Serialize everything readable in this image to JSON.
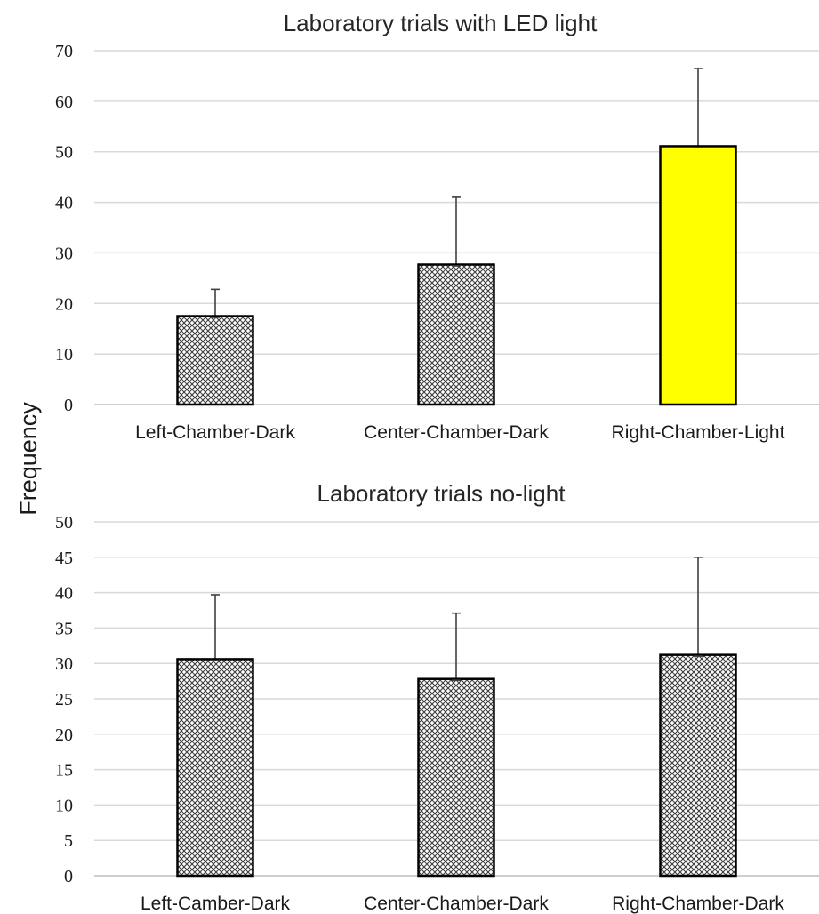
{
  "y_axis_label": "Frequency",
  "chart_data": [
    {
      "type": "bar",
      "title": "Laboratory trials with LED light",
      "xlabel": "",
      "ylabel": "Frequency",
      "categories": [
        "Left-Chamber-Dark",
        "Center-Chamber-Dark",
        "Right-Chamber-Light"
      ],
      "values": [
        17.5,
        27.7,
        51.1
      ],
      "error_upper": [
        22.8,
        41.0,
        66.5
      ],
      "ylim": [
        0,
        70
      ],
      "ytick_step": 10,
      "yticks": [
        "0",
        "10",
        "20",
        "30",
        "40",
        "50",
        "60",
        "70"
      ],
      "bar_fills": [
        "crosshatch",
        "crosshatch",
        "#ffff00"
      ],
      "grid": true,
      "legend": "none"
    },
    {
      "type": "bar",
      "title": "Laboratory trials no-light",
      "xlabel": "",
      "ylabel": "Frequency",
      "categories": [
        "Left-Camber-Dark",
        "Center-Chamber-Dark",
        "Right-Chamber-Dark"
      ],
      "values": [
        30.6,
        27.8,
        31.2
      ],
      "error_upper": [
        39.7,
        37.1,
        45.0
      ],
      "ylim": [
        0,
        50
      ],
      "ytick_step": 5,
      "yticks": [
        "0",
        "5",
        "10",
        "15",
        "20",
        "25",
        "30",
        "35",
        "40",
        "45",
        "50"
      ],
      "bar_fills": [
        "crosshatch",
        "crosshatch",
        "crosshatch"
      ],
      "grid": true,
      "legend": "none"
    }
  ]
}
